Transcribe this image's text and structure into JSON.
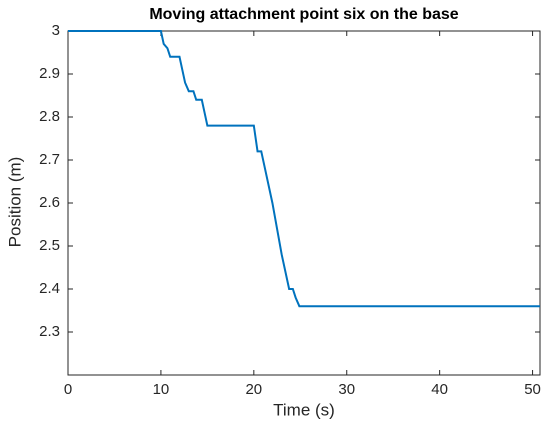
{
  "chart_data": {
    "type": "line",
    "title": "Moving attachment point six on the base",
    "x_label": "Time (s)",
    "y_label": "Position (m)",
    "x": [
      0,
      10,
      10.3,
      10.7,
      11,
      12,
      12.3,
      12.6,
      13,
      13.5,
      13.8,
      14.4,
      14.7,
      15,
      20,
      20.4,
      20.8,
      21.2,
      22,
      23,
      23.8,
      24.2,
      24.5,
      24.9,
      50.8
    ],
    "series": [
      {
        "name": "Position",
        "color": "#0072bd",
        "values": [
          3,
          3,
          2.97,
          2.96,
          2.94,
          2.94,
          2.91,
          2.88,
          2.86,
          2.86,
          2.84,
          2.84,
          2.81,
          2.78,
          2.78,
          2.72,
          2.72,
          2.68,
          2.6,
          2.48,
          2.4,
          2.4,
          2.38,
          2.36,
          2.36
        ]
      }
    ],
    "xlim": [
      0,
      50.8
    ],
    "xticks": [
      0,
      10,
      20,
      30,
      40,
      50
    ],
    "ylim": [
      2.2,
      3
    ],
    "yticks": [
      2.3,
      2.4,
      2.5,
      2.6,
      2.7,
      2.8,
      2.9,
      3
    ],
    "grid": false
  }
}
